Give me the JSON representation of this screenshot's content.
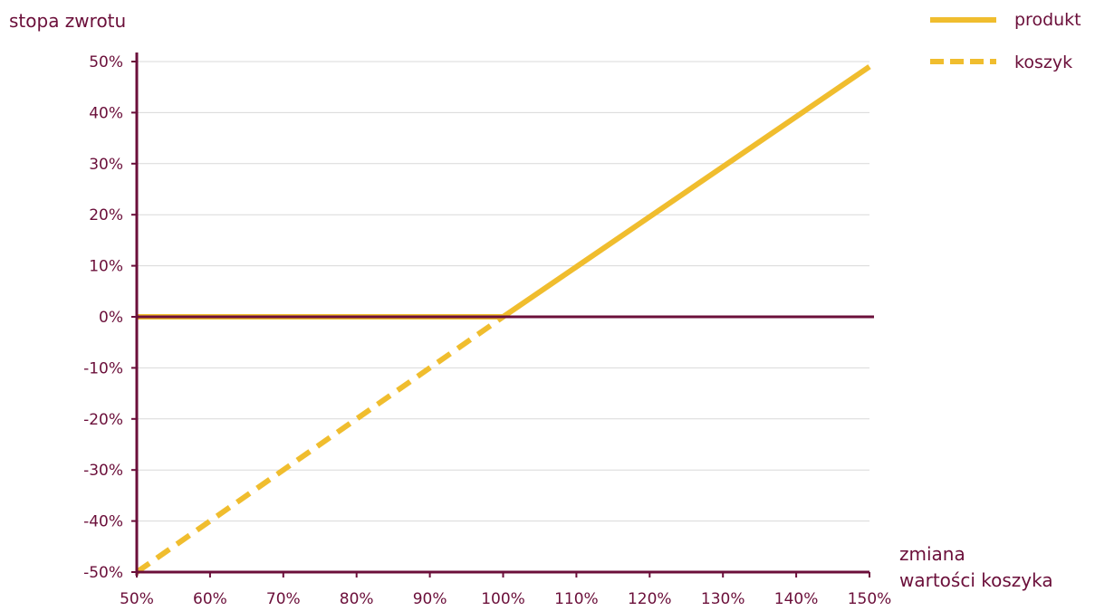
{
  "colors": {
    "axis": "#6b0f3a",
    "text": "#6b0f3a",
    "grid": "#d9d9d9",
    "series": "#f0bd2e"
  },
  "chart_data": {
    "type": "line",
    "ylabel": "stopa zwrotu",
    "xlabel": [
      "zmiana",
      "wartości koszyka"
    ],
    "x_ticks": [
      50,
      60,
      70,
      80,
      90,
      100,
      110,
      120,
      130,
      140,
      150
    ],
    "x_tick_labels": [
      "50%",
      "60%",
      "70%",
      "80%",
      "90%",
      "100%",
      "110%",
      "120%",
      "130%",
      "140%",
      "150%"
    ],
    "y_ticks": [
      -50,
      -40,
      -30,
      -20,
      -10,
      0,
      10,
      20,
      30,
      40,
      50
    ],
    "y_tick_labels": [
      "-50%",
      "-40%",
      "-30%",
      "-20%",
      "-10%",
      "0%",
      "10%",
      "20%",
      "30%",
      "40%",
      "50%"
    ],
    "xlim": [
      50,
      150
    ],
    "ylim": [
      -50,
      50
    ],
    "grid": true,
    "legend_position": "top-right",
    "series": [
      {
        "name": "produkt",
        "style": "solid",
        "x": [
          50,
          100,
          150
        ],
        "y": [
          0,
          0,
          49
        ]
      },
      {
        "name": "koszyk",
        "style": "dashed",
        "x": [
          50,
          100
        ],
        "y": [
          -50,
          0
        ]
      }
    ]
  }
}
